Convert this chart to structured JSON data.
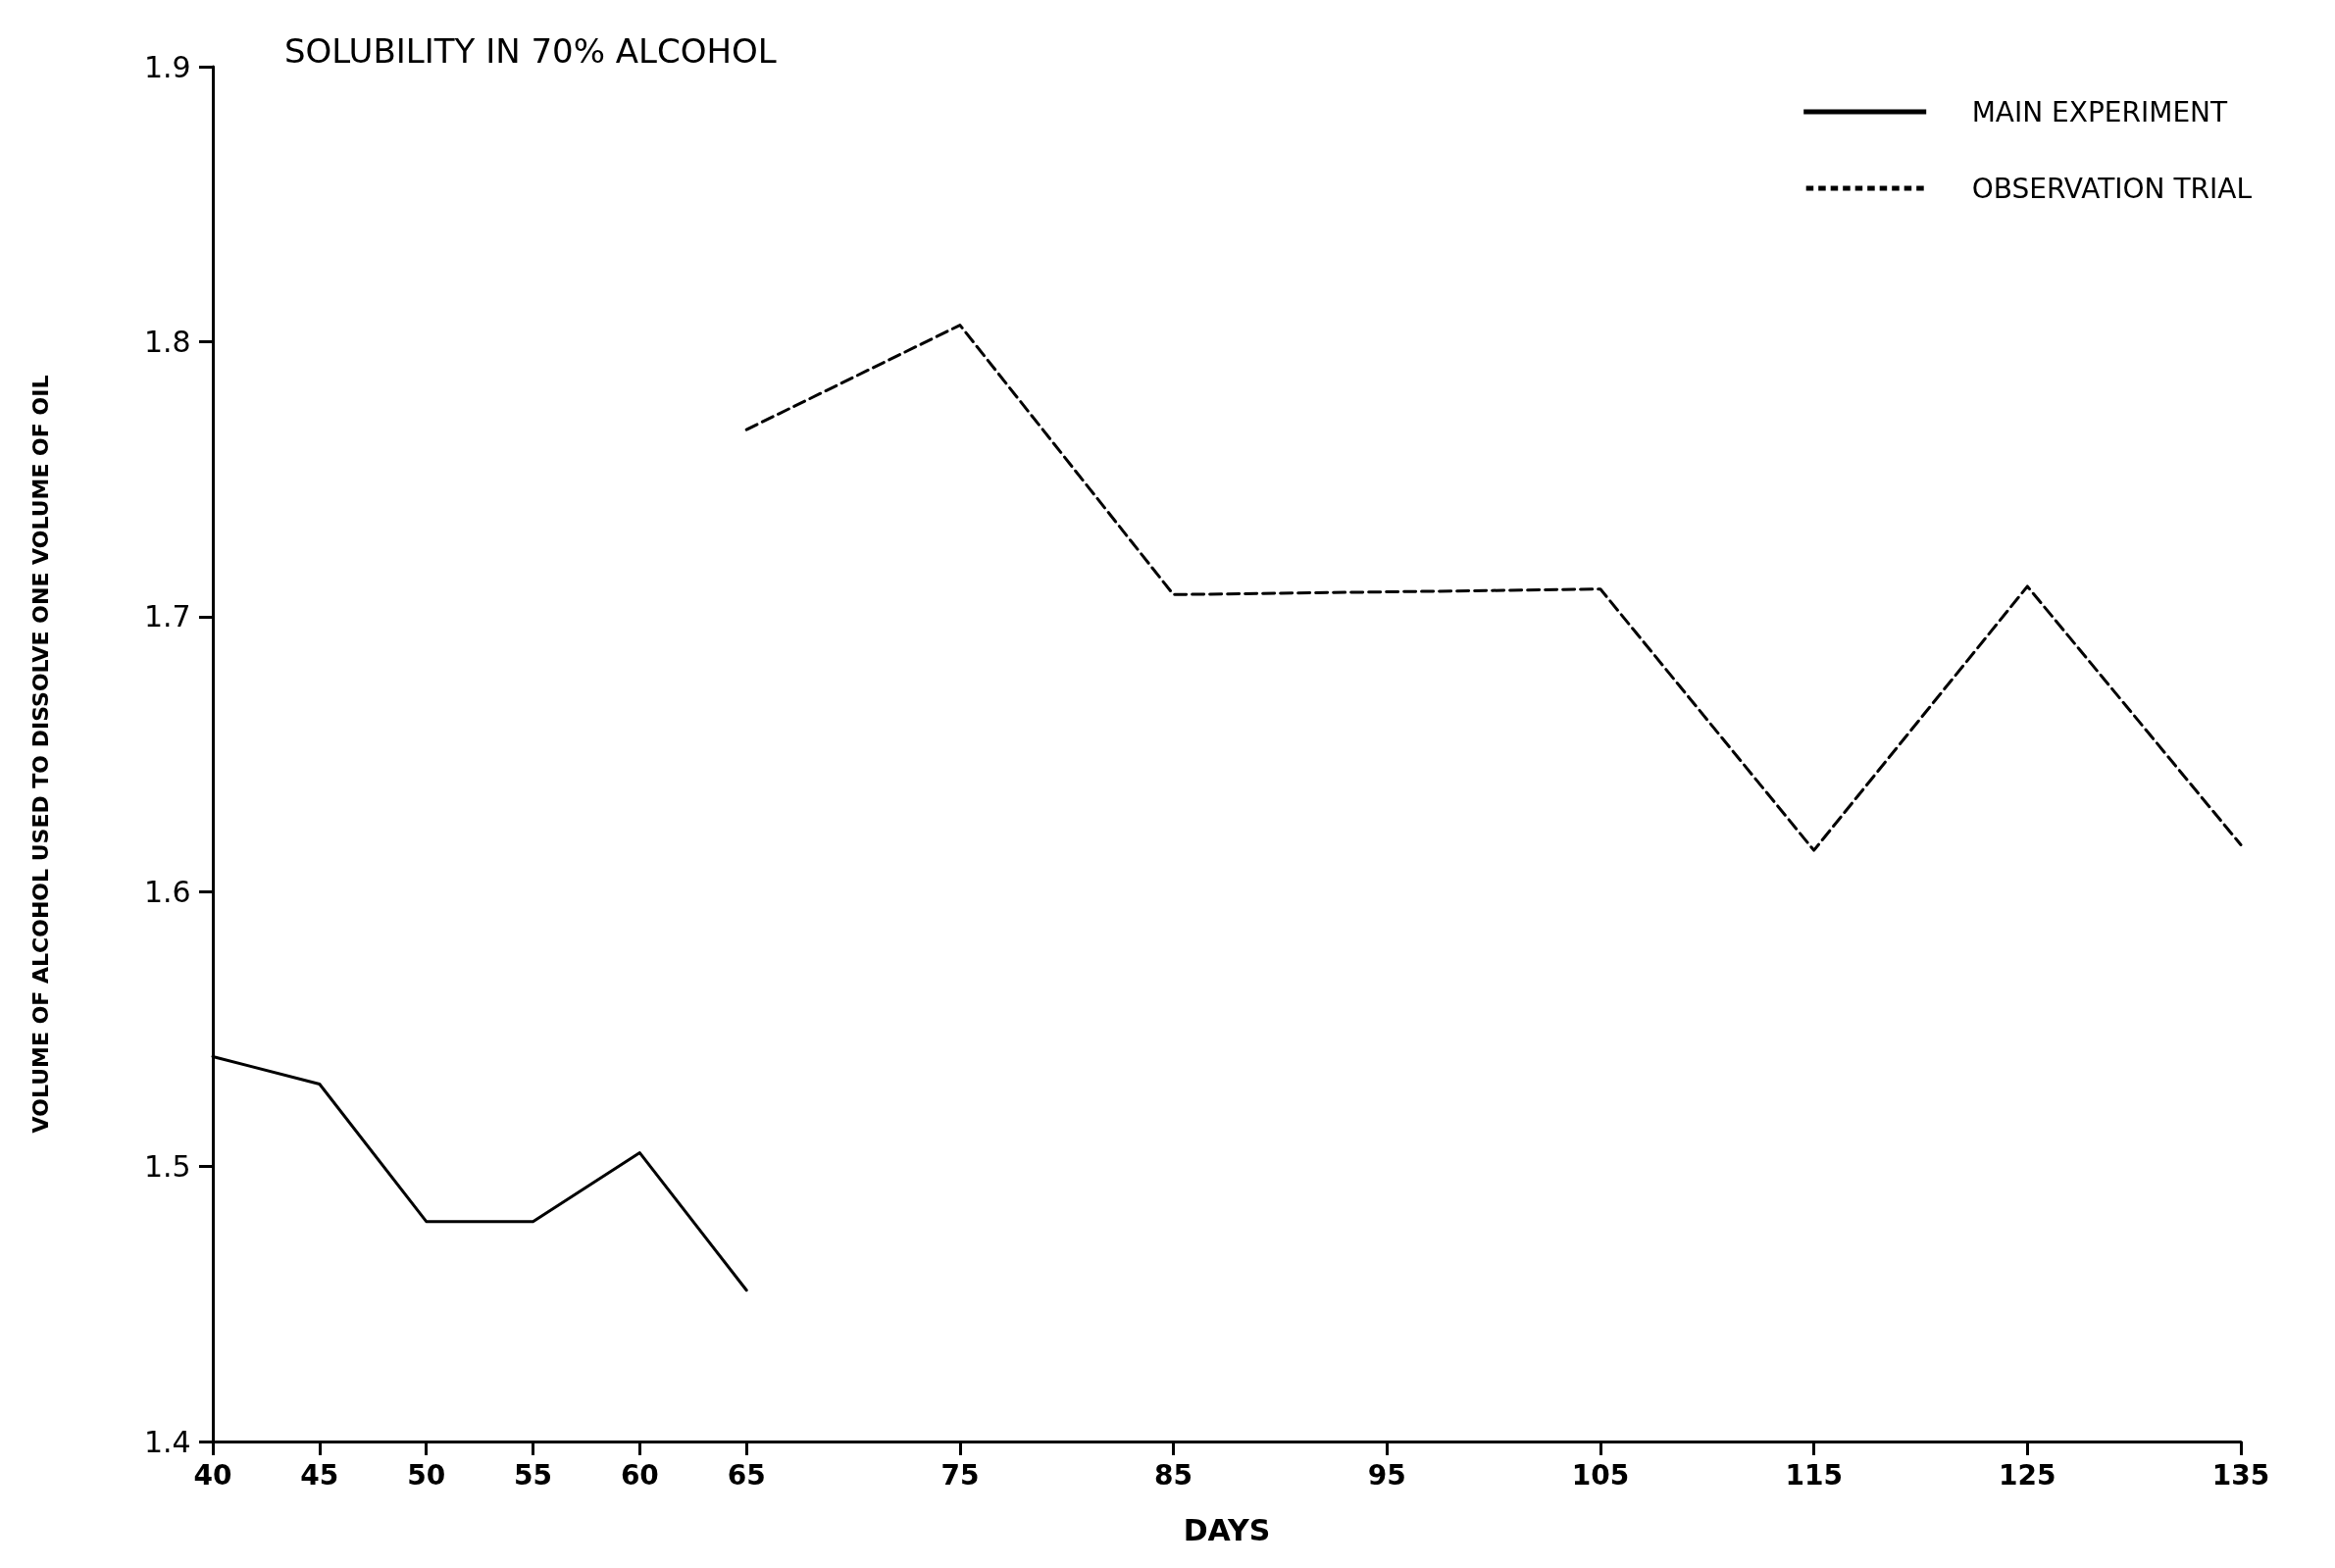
{
  "chart_data": {
    "type": "line",
    "title": "SOLUBILITY IN 70% ALCOHOL",
    "xlabel": "DAYS",
    "ylabel": "VOLUME OF ALCOHOL USED TO DISSOLVE ONE VOLUME OF OIL",
    "series": [
      {
        "name": "MAIN EXPERIMENT",
        "color": "#000000",
        "line_style": "solid",
        "x": [
          40,
          45,
          50,
          55,
          60,
          65
        ],
        "values": [
          1.54,
          1.53,
          1.48,
          1.48,
          1.505,
          1.455
        ]
      },
      {
        "name": "OBSERVATION TRIAL",
        "color": "#000000",
        "line_style": "dashed",
        "x": [
          65,
          75,
          85,
          105,
          115,
          125,
          135
        ],
        "values": [
          1.768,
          1.806,
          1.708,
          1.71,
          1.615,
          1.711,
          1.617
        ]
      }
    ],
    "xlim": [
      40,
      135
    ],
    "xticks": [
      40,
      45,
      50,
      55,
      60,
      65,
      75,
      85,
      95,
      105,
      115,
      125,
      135
    ],
    "ylim": [
      1.4,
      1.9
    ],
    "yticks": [
      1.4,
      1.5,
      1.6,
      1.7,
      1.8,
      1.9
    ],
    "marker": "none",
    "grid": false,
    "legend": "top right"
  }
}
